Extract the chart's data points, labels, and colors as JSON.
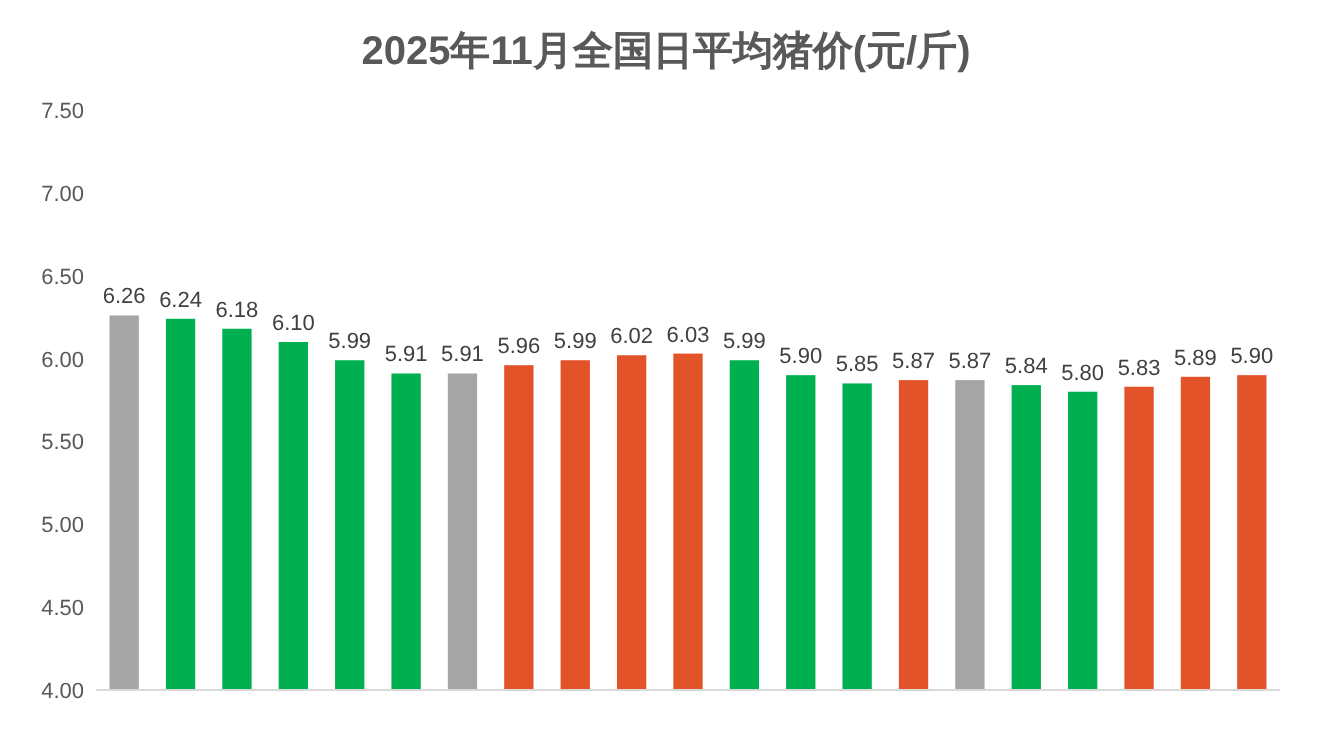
{
  "chart_data": {
    "type": "bar",
    "title": "2025年11月全国日平均猪价(元/斤)",
    "categories": [
      null,
      null,
      null,
      null,
      null,
      null,
      null,
      null,
      null,
      null,
      null,
      null,
      null,
      null,
      null,
      null,
      null,
      null,
      null,
      null,
      null
    ],
    "values": [
      6.26,
      6.24,
      6.18,
      6.1,
      5.99,
      5.91,
      5.91,
      5.96,
      5.99,
      6.02,
      6.03,
      5.99,
      5.9,
      5.85,
      5.87,
      5.87,
      5.84,
      5.8,
      5.83,
      5.89,
      5.9
    ],
    "colors": [
      "#a5a5a5",
      "#00b050",
      "#00b050",
      "#00b050",
      "#00b050",
      "#00b050",
      "#a5a5a5",
      "#e2532a",
      "#e2532a",
      "#e2532a",
      "#e2532a",
      "#00b050",
      "#00b050",
      "#00b050",
      "#e2532a",
      "#a5a5a5",
      "#00b050",
      "#00b050",
      "#e2532a",
      "#e2532a",
      "#e2532a"
    ],
    "ylim": [
      4.0,
      7.5
    ],
    "yticks": [
      {
        "value": 4.0,
        "label": "4.00"
      },
      {
        "value": 4.5,
        "label": "4.50"
      },
      {
        "value": 5.0,
        "label": "5.00"
      },
      {
        "value": 5.5,
        "label": "5.50"
      },
      {
        "value": 6.0,
        "label": "6.00"
      },
      {
        "value": 6.5,
        "label": "6.50"
      },
      {
        "value": 7.0,
        "label": "7.00"
      },
      {
        "value": 7.5,
        "label": "7.50"
      }
    ],
    "value_labels": [
      "6.26",
      "6.24",
      "6.18",
      "6.10",
      "5.99",
      "5.91",
      "5.91",
      "5.96",
      "5.99",
      "6.02",
      "6.03",
      "5.99",
      "5.90",
      "5.85",
      "5.87",
      "5.87",
      "5.84",
      "5.80",
      "5.83",
      "5.89",
      "5.90"
    ]
  }
}
